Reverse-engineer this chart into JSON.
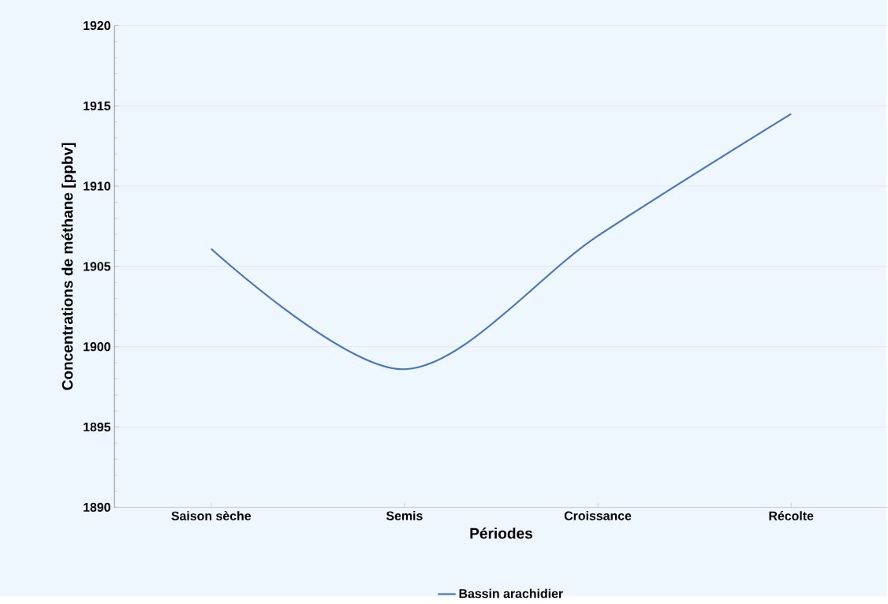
{
  "chart_data": {
    "type": "line",
    "xlabel": "Périodes",
    "ylabel": "Concentrations de méthane  [ppbv]",
    "categories": [
      "Saison sèche",
      "Semis",
      "Croissance",
      "Récolte"
    ],
    "series": [
      {
        "name": "Bassin arachidier",
        "color": "#4472c4",
        "values": [
          1906.1,
          1898.6,
          1906.9,
          1914.5
        ]
      }
    ],
    "ylim": [
      1890,
      1920
    ],
    "yticks": [
      1890,
      1895,
      1900,
      1905,
      1910,
      1915,
      1920
    ],
    "grid": "y",
    "legend": "bottom",
    "marker": "none",
    "line_style": "solid"
  }
}
